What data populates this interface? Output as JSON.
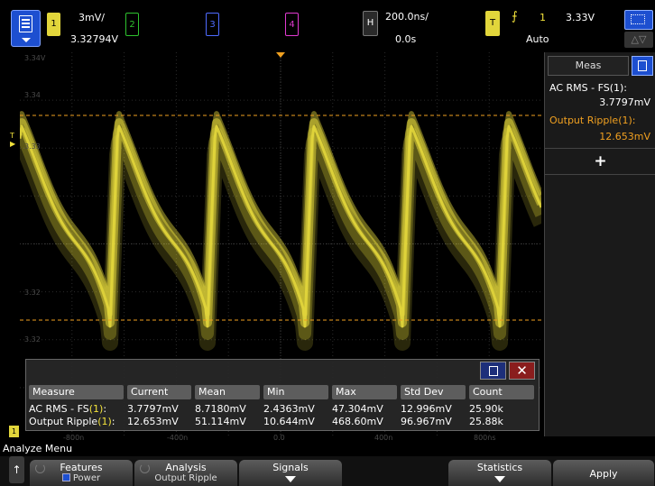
{
  "topbar": {
    "ch1": {
      "label": "1",
      "scale": "3mV/",
      "offset": "3.32794V"
    },
    "ch2": {
      "label": "2"
    },
    "ch3": {
      "label": "3"
    },
    "ch4": {
      "label": "4"
    },
    "horizontal": {
      "label": "H",
      "scale": "200.0ns/",
      "delay": "0.0s"
    },
    "trigger": {
      "label": "T",
      "edge_symbol": "⨍",
      "source": "1",
      "level": "3.33V",
      "mode": "Auto"
    },
    "icon_names": [
      "menu-icon",
      "zoom-box-icon",
      "delta-icon"
    ]
  },
  "graticule": {
    "y_labels": [
      "3.34V",
      "3.34",
      "3.33",
      "3.32",
      "3.32"
    ],
    "x_labels": [
      "-800n",
      "-400n",
      "0.0",
      "400n",
      "800ns"
    ],
    "trigger_marker": "T",
    "ground_marker": "1"
  },
  "measurements_table": {
    "headers": [
      "Measure",
      "Current",
      "Mean",
      "Min",
      "Max",
      "Std Dev",
      "Count"
    ],
    "rows": [
      {
        "name": "AC RMS - FS",
        "ch": "(1)",
        "suffix": ":",
        "values": [
          "3.7797mV",
          "8.7180mV",
          "2.4363mV",
          "47.304mV",
          "12.996mV",
          "25.90k"
        ]
      },
      {
        "name": "Output Ripple",
        "ch": "(1)",
        "suffix": ":",
        "values": [
          "12.653mV",
          "51.114mV",
          "10.644mV",
          "468.60mV",
          "96.967mV",
          "25.88k"
        ]
      }
    ],
    "close_symbol": "✕"
  },
  "meas_panel": {
    "tab_label": "Meas",
    "items": [
      {
        "label": "AC RMS - FS(1):",
        "value": "3.7797mV",
        "color": "#ffffff"
      },
      {
        "label": "Output Ripple(1):",
        "value": "12.653mV",
        "color": "#f0a020"
      }
    ],
    "add_symbol": "+"
  },
  "menu": {
    "title": "Analyze Menu",
    "back_symbol": "↑",
    "softkeys": [
      {
        "label": "Features",
        "sub": "Power",
        "has_checkbox": true
      },
      {
        "label": "Analysis",
        "sub": "Output Ripple"
      },
      {
        "label": "Signals",
        "sub": ""
      },
      {
        "label": "Statistics",
        "sub": ""
      },
      {
        "label": "Apply",
        "sub": ""
      }
    ]
  },
  "colors": {
    "ch1": "#e2d63b",
    "ch2": "#2ec22e",
    "ch3": "#4e6bff",
    "ch4": "#e03ad0",
    "ripple_cursor": "#f0a020",
    "accent": "#1d4fd0"
  }
}
